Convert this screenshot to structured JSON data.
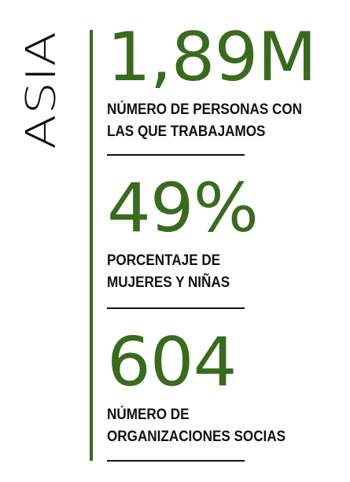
{
  "colors": {
    "accent": "#3a6a1e",
    "text": "#111111"
  },
  "region": "ASIA",
  "stats": [
    {
      "value": "1,89M",
      "description_lines": [
        "NÚMERO DE PERSONAS CON",
        "LAS QUE TRABAJAMOS"
      ]
    },
    {
      "value": "49%",
      "description_lines": [
        "PORCENTAJE DE",
        "MUJERES Y NIÑAS"
      ]
    },
    {
      "value": "604",
      "description_lines": [
        "NÚMERO DE",
        "ORGANIZACIONES SOCIAS"
      ]
    }
  ]
}
